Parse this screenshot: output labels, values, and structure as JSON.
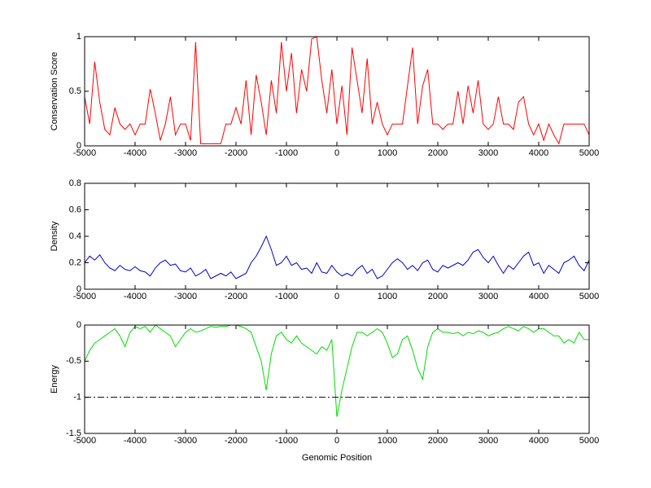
{
  "chart_data": [
    {
      "type": "line",
      "ylabel": "Conservation Score",
      "color": "#ff0000",
      "x": [
        -5000,
        -4900,
        -4800,
        -4700,
        -4600,
        -4500,
        -4400,
        -4300,
        -4200,
        -4100,
        -4000,
        -3900,
        -3800,
        -3700,
        -3600,
        -3500,
        -3400,
        -3300,
        -3200,
        -3100,
        -3000,
        -2900,
        -2800,
        -2700,
        -2600,
        -2500,
        -2400,
        -2300,
        -2200,
        -2100,
        -2000,
        -1900,
        -1800,
        -1700,
        -1600,
        -1500,
        -1400,
        -1300,
        -1200,
        -1100,
        -1000,
        -900,
        -800,
        -700,
        -600,
        -500,
        -400,
        -300,
        -200,
        -100,
        0,
        100,
        200,
        300,
        400,
        500,
        600,
        700,
        800,
        900,
        1000,
        1100,
        1200,
        1300,
        1400,
        1500,
        1600,
        1700,
        1800,
        1900,
        2000,
        2100,
        2200,
        2300,
        2400,
        2500,
        2600,
        2700,
        2800,
        2900,
        3000,
        3100,
        3200,
        3300,
        3400,
        3500,
        3600,
        3700,
        3800,
        3900,
        4000,
        4100,
        4200,
        4300,
        4400,
        4500,
        4600,
        4700,
        4800,
        4900,
        5000
      ],
      "values": [
        0.45,
        0.2,
        0.77,
        0.4,
        0.15,
        0.1,
        0.35,
        0.2,
        0.15,
        0.2,
        0.1,
        0.2,
        0.2,
        0.52,
        0.3,
        0.05,
        0.2,
        0.45,
        0.1,
        0.2,
        0.2,
        0.05,
        0.95,
        0.02,
        0.02,
        0.02,
        0.02,
        0.02,
        0.2,
        0.2,
        0.35,
        0.2,
        0.6,
        0.1,
        0.65,
        0.4,
        0.1,
        0.6,
        0.3,
        0.95,
        0.5,
        0.85,
        0.3,
        0.7,
        0.5,
        0.98,
        1,
        0.6,
        0.3,
        0.7,
        0.2,
        0.55,
        0.1,
        0.9,
        0.6,
        0.3,
        0.8,
        0.2,
        0.4,
        0.2,
        0.1,
        0.2,
        0.2,
        0.2,
        0.55,
        0.9,
        0.2,
        0.55,
        0.7,
        0.2,
        0.2,
        0.15,
        0.2,
        0.2,
        0.5,
        0.2,
        0.55,
        0.3,
        0.6,
        0.2,
        0.15,
        0.2,
        0.45,
        0.2,
        0.2,
        0.15,
        0.4,
        0.45,
        0.2,
        0.1,
        0.2,
        0.05,
        0.2,
        0.1,
        0.02,
        0.2,
        0.2,
        0.2,
        0.2,
        0.2,
        0.1
      ],
      "xlim": [
        -5000,
        5000
      ],
      "xticks": [
        -5000,
        -4000,
        -3000,
        -2000,
        -1000,
        0,
        1000,
        2000,
        3000,
        4000,
        5000
      ],
      "ylim": [
        0,
        1
      ],
      "yticks": [
        0,
        0.5,
        1
      ]
    },
    {
      "type": "line",
      "ylabel": "Density",
      "color": "#0000cc",
      "x": [
        -5000,
        -4900,
        -4800,
        -4700,
        -4600,
        -4500,
        -4400,
        -4300,
        -4200,
        -4100,
        -4000,
        -3900,
        -3800,
        -3700,
        -3600,
        -3500,
        -3400,
        -3300,
        -3200,
        -3100,
        -3000,
        -2900,
        -2800,
        -2700,
        -2600,
        -2500,
        -2400,
        -2300,
        -2200,
        -2100,
        -2000,
        -1900,
        -1800,
        -1700,
        -1600,
        -1500,
        -1400,
        -1300,
        -1200,
        -1100,
        -1000,
        -900,
        -800,
        -700,
        -600,
        -500,
        -400,
        -300,
        -200,
        -100,
        0,
        100,
        200,
        300,
        400,
        500,
        600,
        700,
        800,
        900,
        1000,
        1100,
        1200,
        1300,
        1400,
        1500,
        1600,
        1700,
        1800,
        1900,
        2000,
        2100,
        2200,
        2300,
        2400,
        2500,
        2600,
        2700,
        2800,
        2900,
        3000,
        3100,
        3200,
        3300,
        3400,
        3500,
        3600,
        3700,
        3800,
        3900,
        4000,
        4100,
        4200,
        4300,
        4400,
        4500,
        4600,
        4700,
        4800,
        4900,
        5000
      ],
      "values": [
        0.2,
        0.25,
        0.22,
        0.26,
        0.2,
        0.16,
        0.14,
        0.18,
        0.15,
        0.14,
        0.17,
        0.14,
        0.13,
        0.1,
        0.16,
        0.2,
        0.22,
        0.18,
        0.19,
        0.14,
        0.13,
        0.16,
        0.1,
        0.12,
        0.15,
        0.08,
        0.1,
        0.12,
        0.1,
        0.13,
        0.08,
        0.1,
        0.12,
        0.2,
        0.25,
        0.32,
        0.4,
        0.3,
        0.18,
        0.2,
        0.25,
        0.18,
        0.2,
        0.15,
        0.16,
        0.12,
        0.2,
        0.13,
        0.12,
        0.18,
        0.13,
        0.1,
        0.12,
        0.1,
        0.15,
        0.18,
        0.12,
        0.15,
        0.08,
        0.1,
        0.15,
        0.2,
        0.23,
        0.2,
        0.15,
        0.18,
        0.14,
        0.2,
        0.22,
        0.15,
        0.13,
        0.18,
        0.16,
        0.18,
        0.2,
        0.18,
        0.22,
        0.28,
        0.3,
        0.24,
        0.2,
        0.25,
        0.18,
        0.12,
        0.18,
        0.15,
        0.2,
        0.25,
        0.28,
        0.18,
        0.2,
        0.12,
        0.18,
        0.15,
        0.12,
        0.2,
        0.22,
        0.25,
        0.18,
        0.14,
        0.22
      ],
      "xlim": [
        -5000,
        5000
      ],
      "xticks": [
        -5000,
        -4000,
        -3000,
        -2000,
        -1000,
        0,
        1000,
        2000,
        3000,
        4000,
        5000
      ],
      "ylim": [
        0,
        0.8
      ],
      "yticks": [
        0,
        0.2,
        0.4,
        0.6,
        0.8
      ]
    },
    {
      "type": "line",
      "ylabel": "Energy",
      "xlabel": "Genomic Position",
      "color": "#00dd00",
      "x": [
        -5000,
        -4900,
        -4800,
        -4700,
        -4600,
        -4500,
        -4400,
        -4300,
        -4200,
        -4100,
        -4000,
        -3900,
        -3800,
        -3700,
        -3600,
        -3500,
        -3400,
        -3300,
        -3200,
        -3100,
        -3000,
        -2900,
        -2800,
        -2700,
        -2600,
        -2500,
        -2400,
        -2300,
        -2200,
        -2100,
        -2000,
        -1900,
        -1800,
        -1700,
        -1600,
        -1500,
        -1400,
        -1300,
        -1200,
        -1100,
        -1000,
        -900,
        -800,
        -700,
        -600,
        -500,
        -400,
        -300,
        -200,
        -100,
        0,
        100,
        200,
        300,
        400,
        500,
        600,
        700,
        800,
        900,
        1000,
        1100,
        1200,
        1300,
        1400,
        1500,
        1600,
        1700,
        1800,
        1900,
        2000,
        2100,
        2200,
        2300,
        2400,
        2500,
        2600,
        2700,
        2800,
        2900,
        3000,
        3100,
        3200,
        3300,
        3400,
        3500,
        3600,
        3700,
        3800,
        3900,
        4000,
        4100,
        4200,
        4300,
        4400,
        4500,
        4600,
        4700,
        4800,
        4900,
        5000
      ],
      "values": [
        -0.5,
        -0.35,
        -0.25,
        -0.2,
        -0.15,
        -0.1,
        -0.05,
        -0.15,
        -0.3,
        -0.1,
        -0.02,
        -0.05,
        -0.02,
        -0.1,
        0,
        -0.05,
        -0.1,
        -0.15,
        -0.3,
        -0.2,
        -0.1,
        -0.05,
        -0.1,
        -0.08,
        -0.05,
        -0.02,
        -0.03,
        -0.02,
        -0.02,
        0,
        0,
        -0.02,
        -0.05,
        -0.1,
        -0.3,
        -0.5,
        -0.9,
        -0.4,
        -0.15,
        -0.1,
        -0.2,
        -0.25,
        -0.15,
        -0.25,
        -0.3,
        -0.35,
        -0.4,
        -0.3,
        -0.35,
        -0.2,
        -1.27,
        -0.9,
        -0.6,
        -0.3,
        -0.1,
        -0.1,
        -0.15,
        -0.1,
        -0.05,
        -0.1,
        -0.25,
        -0.45,
        -0.4,
        -0.2,
        -0.15,
        -0.35,
        -0.6,
        -0.75,
        -0.3,
        -0.1,
        -0.05,
        -0.1,
        -0.1,
        -0.12,
        -0.1,
        -0.15,
        -0.1,
        -0.12,
        -0.08,
        -0.1,
        -0.15,
        -0.12,
        -0.1,
        -0.05,
        -0.02,
        -0.05,
        -0.08,
        -0.02,
        -0.05,
        -0.1,
        -0.05,
        -0.05,
        -0.1,
        -0.15,
        -0.15,
        -0.25,
        -0.2,
        -0.25,
        -0.1,
        -0.2,
        -0.2
      ],
      "reference_line": {
        "value": -1,
        "style": "dash-dot",
        "color": "#000000"
      },
      "xlim": [
        -5000,
        5000
      ],
      "xticks": [
        -5000,
        -4000,
        -3000,
        -2000,
        -1000,
        0,
        1000,
        2000,
        3000,
        4000,
        5000
      ],
      "ylim": [
        -1.5,
        0
      ],
      "yticks": [
        -1.5,
        -1,
        -0.5,
        0
      ]
    }
  ]
}
